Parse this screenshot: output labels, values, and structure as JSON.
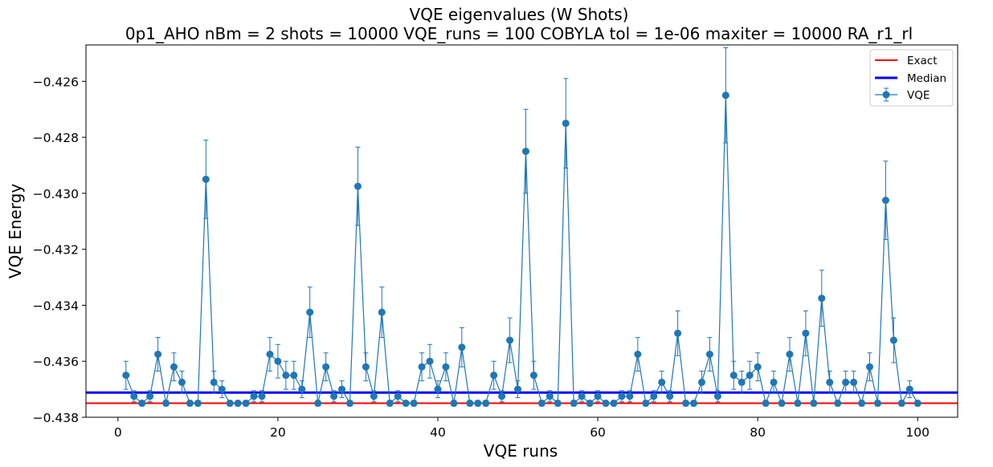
{
  "title": {
    "line1": "VQE eigenvalues (W Shots)",
    "line2": "0p1_AHO    nBm = 2    shots = 10000   VQE_runs = 100    COBYLA    tol = 1e-06    maxiter = 10000    RA_r1_rl"
  },
  "chart_data": {
    "type": "line",
    "title": "VQE eigenvalues (W Shots)",
    "subtitle": "0p1_AHO    nBm = 2    shots = 10000   VQE_runs = 100    COBYLA    tol = 1e-06    maxiter = 10000    RA_r1_rl",
    "xlabel": "VQE runs",
    "ylabel": "VQE Energy",
    "xlim": [
      -4,
      105
    ],
    "ylim": [
      -0.438,
      -0.4247
    ],
    "x_ticks": [
      0,
      20,
      40,
      60,
      80,
      100
    ],
    "x_tick_labels": [
      "0",
      "20",
      "40",
      "60",
      "80",
      "100"
    ],
    "y_ticks": [
      -0.438,
      -0.436,
      -0.434,
      -0.432,
      -0.43,
      -0.428,
      -0.426
    ],
    "y_tick_labels": [
      "−0.438",
      "−0.436",
      "−0.434",
      "−0.432",
      "−0.430",
      "−0.428",
      "−0.426"
    ],
    "grid": false,
    "legend_position": "top-right",
    "legend": [
      "Exact",
      "Median",
      "VQE"
    ],
    "colors": {
      "exact": "#ff0000",
      "median": "#0000ff",
      "vqe": "#1f77b4"
    },
    "exact": -0.4375,
    "median": -0.43712,
    "series": [
      {
        "name": "VQE",
        "x": [
          1,
          2,
          3,
          4,
          5,
          6,
          7,
          8,
          9,
          10,
          11,
          12,
          13,
          14,
          15,
          16,
          17,
          18,
          19,
          20,
          21,
          22,
          23,
          24,
          25,
          26,
          27,
          28,
          29,
          30,
          31,
          32,
          33,
          34,
          35,
          36,
          37,
          38,
          39,
          40,
          41,
          42,
          43,
          44,
          45,
          46,
          47,
          48,
          49,
          50,
          51,
          52,
          53,
          54,
          55,
          56,
          57,
          58,
          59,
          60,
          61,
          62,
          63,
          64,
          65,
          66,
          67,
          68,
          69,
          70,
          71,
          72,
          73,
          74,
          75,
          76,
          77,
          78,
          79,
          80,
          81,
          82,
          83,
          84,
          85,
          86,
          87,
          88,
          89,
          90,
          91,
          92,
          93,
          94,
          95,
          96,
          97,
          98,
          99,
          100
        ],
        "y": [
          -0.4365,
          -0.43725,
          -0.4375,
          -0.43725,
          -0.43575,
          -0.4375,
          -0.4362,
          -0.43675,
          -0.4375,
          -0.4375,
          -0.4295,
          -0.43675,
          -0.437,
          -0.4375,
          -0.4375,
          -0.4375,
          -0.43725,
          -0.43725,
          -0.43575,
          -0.436,
          -0.4365,
          -0.4365,
          -0.437,
          -0.43425,
          -0.4375,
          -0.4362,
          -0.43725,
          -0.437,
          -0.4375,
          -0.42975,
          -0.4362,
          -0.43725,
          -0.43425,
          -0.4375,
          -0.43725,
          -0.4375,
          -0.4375,
          -0.4362,
          -0.436,
          -0.437,
          -0.4362,
          -0.4375,
          -0.4355,
          -0.4375,
          -0.4375,
          -0.4375,
          -0.4365,
          -0.43725,
          -0.43525,
          -0.437,
          -0.4285,
          -0.4365,
          -0.4375,
          -0.43725,
          -0.4375,
          -0.4275,
          -0.4375,
          -0.43725,
          -0.4375,
          -0.43725,
          -0.4375,
          -0.4375,
          -0.43725,
          -0.43725,
          -0.43575,
          -0.4375,
          -0.43725,
          -0.43675,
          -0.43725,
          -0.435,
          -0.4375,
          -0.4375,
          -0.43675,
          -0.43575,
          -0.43725,
          -0.4265,
          -0.4365,
          -0.43675,
          -0.4365,
          -0.4362,
          -0.4375,
          -0.43675,
          -0.4375,
          -0.43575,
          -0.4375,
          -0.435,
          -0.4375,
          -0.43375,
          -0.43675,
          -0.4375,
          -0.43675,
          -0.43675,
          -0.4375,
          -0.4362,
          -0.4375,
          -0.43025,
          -0.43525,
          -0.4375,
          -0.437,
          -0.4375
        ],
        "yerr": [
          0.0005,
          0.0002,
          0.0001,
          0.0002,
          0.0006,
          0.0001,
          0.0005,
          0.0004,
          0.0001,
          0.0001,
          0.0014,
          0.0004,
          0.0003,
          0.0001,
          0.0001,
          0.0001,
          0.0002,
          0.0002,
          0.0006,
          0.0006,
          0.0005,
          0.0005,
          0.0003,
          0.0009,
          0.0001,
          0.0005,
          0.0002,
          0.0003,
          0.0001,
          0.0014,
          0.0005,
          0.0002,
          0.0009,
          0.0001,
          0.0002,
          0.0001,
          0.0001,
          0.0005,
          0.0006,
          0.0003,
          0.0005,
          0.0001,
          0.0007,
          0.0001,
          0.0001,
          0.0001,
          0.0005,
          0.0002,
          0.0008,
          0.0003,
          0.0015,
          0.0005,
          0.0001,
          0.0002,
          0.0001,
          0.0016,
          0.0001,
          0.0002,
          0.0001,
          0.0002,
          0.0001,
          0.0001,
          0.0002,
          0.0002,
          0.0006,
          0.0001,
          0.0002,
          0.0004,
          0.0002,
          0.0008,
          0.0001,
          0.0001,
          0.0004,
          0.0006,
          0.0002,
          0.0017,
          0.0005,
          0.0004,
          0.0005,
          0.0005,
          0.0001,
          0.0004,
          0.0001,
          0.0006,
          0.0001,
          0.0008,
          0.0001,
          0.001,
          0.0004,
          0.0001,
          0.0004,
          0.0004,
          0.0001,
          0.0005,
          0.0001,
          0.0014,
          0.0008,
          0.0001,
          0.0003,
          0.0001
        ]
      }
    ]
  }
}
